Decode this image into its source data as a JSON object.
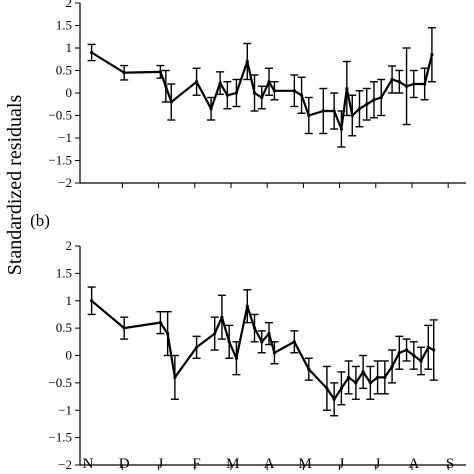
{
  "figure": {
    "ylabel": "Standardized residuals",
    "month_labels": [
      "N",
      "D",
      "J",
      "F",
      "M",
      "A",
      "M",
      "J",
      "J",
      "A",
      "S"
    ]
  },
  "chart_data": [
    {
      "type": "line",
      "panel_label": "",
      "ylabel": "Standardized residuals",
      "ylim": [
        -2,
        2
      ],
      "yticks": [
        -2,
        -1.5,
        -1,
        -0.5,
        0,
        0.5,
        1,
        1.5,
        2
      ],
      "ytick_labels": [
        "−2",
        "−1.5",
        "−1",
        "−0.5",
        "0",
        "0.5",
        "1",
        "1.5",
        "2"
      ],
      "x_categories": [
        "N",
        "D",
        "J",
        "F",
        "M",
        "A",
        "M",
        "J",
        "J",
        "A",
        "S"
      ],
      "xlim": [
        0,
        11.1
      ],
      "error_bars": true,
      "points": [
        {
          "x": 0.1,
          "y": 0.9,
          "err": 0.18
        },
        {
          "x": 1.0,
          "y": 0.45,
          "err": 0.16
        },
        {
          "x": 2.0,
          "y": 0.47,
          "err": 0.14
        },
        {
          "x": 2.15,
          "y": 0.15,
          "err": 0.35
        },
        {
          "x": 2.3,
          "y": -0.2,
          "err": 0.4
        },
        {
          "x": 3.0,
          "y": 0.25,
          "err": 0.3
        },
        {
          "x": 3.4,
          "y": -0.35,
          "err": 0.25
        },
        {
          "x": 3.65,
          "y": 0.22,
          "err": 0.25
        },
        {
          "x": 3.85,
          "y": -0.05,
          "err": 0.3
        },
        {
          "x": 4.1,
          "y": 0.0,
          "err": 0.3
        },
        {
          "x": 4.4,
          "y": 0.7,
          "err": 0.4
        },
        {
          "x": 4.6,
          "y": 0.0,
          "err": 0.4
        },
        {
          "x": 4.8,
          "y": -0.1,
          "err": 0.25
        },
        {
          "x": 5.0,
          "y": 0.25,
          "err": 0.3
        },
        {
          "x": 5.15,
          "y": 0.05,
          "err": 0.2
        },
        {
          "x": 5.7,
          "y": 0.05,
          "err": 0.35
        },
        {
          "x": 5.9,
          "y": -0.05,
          "err": 0.4
        },
        {
          "x": 6.1,
          "y": -0.5,
          "err": 0.4
        },
        {
          "x": 6.5,
          "y": -0.4,
          "err": 0.5
        },
        {
          "x": 6.8,
          "y": -0.4,
          "err": 0.4
        },
        {
          "x": 7.0,
          "y": -0.8,
          "err": 0.4
        },
        {
          "x": 7.15,
          "y": 0.1,
          "err": 0.6
        },
        {
          "x": 7.3,
          "y": -0.5,
          "err": 0.45
        },
        {
          "x": 7.5,
          "y": -0.35,
          "err": 0.4
        },
        {
          "x": 7.7,
          "y": -0.25,
          "err": 0.35
        },
        {
          "x": 7.9,
          "y": -0.15,
          "err": 0.4
        },
        {
          "x": 8.1,
          "y": -0.1,
          "err": 0.4
        },
        {
          "x": 8.4,
          "y": 0.3,
          "err": 0.3
        },
        {
          "x": 8.6,
          "y": 0.25,
          "err": 0.25
        },
        {
          "x": 8.8,
          "y": 0.15,
          "err": 0.85
        },
        {
          "x": 9.0,
          "y": 0.2,
          "err": 0.3
        },
        {
          "x": 9.3,
          "y": 0.2,
          "err": 0.35
        },
        {
          "x": 9.5,
          "y": 0.85,
          "err": 0.6
        }
      ]
    },
    {
      "type": "line",
      "panel_label": "(b)",
      "ylabel": "Standardized residuals",
      "ylim": [
        -2,
        2
      ],
      "yticks": [
        -2,
        -1.5,
        -1,
        -0.5,
        0,
        0.5,
        1,
        1.5,
        2
      ],
      "ytick_labels": [
        "−2",
        "−1.5",
        "−1",
        "−0.5",
        "0",
        "0.5",
        "1",
        "1.5",
        "2"
      ],
      "x_categories": [
        "N",
        "D",
        "J",
        "F",
        "M",
        "A",
        "M",
        "J",
        "J",
        "A",
        "S"
      ],
      "xlim": [
        0,
        11.1
      ],
      "error_bars": true,
      "points": [
        {
          "x": 0.1,
          "y": 1.0,
          "err": 0.25
        },
        {
          "x": 1.0,
          "y": 0.5,
          "err": 0.2
        },
        {
          "x": 2.0,
          "y": 0.6,
          "err": 0.2
        },
        {
          "x": 2.2,
          "y": 0.4,
          "err": 0.4
        },
        {
          "x": 2.4,
          "y": -0.4,
          "err": 0.4
        },
        {
          "x": 3.0,
          "y": 0.15,
          "err": 0.2
        },
        {
          "x": 3.5,
          "y": 0.4,
          "err": 0.3
        },
        {
          "x": 3.7,
          "y": 0.7,
          "err": 0.4
        },
        {
          "x": 3.9,
          "y": 0.25,
          "err": 0.3
        },
        {
          "x": 4.1,
          "y": -0.05,
          "err": 0.3
        },
        {
          "x": 4.4,
          "y": 0.9,
          "err": 0.3
        },
        {
          "x": 4.6,
          "y": 0.5,
          "err": 0.25
        },
        {
          "x": 4.8,
          "y": 0.25,
          "err": 0.2
        },
        {
          "x": 5.0,
          "y": 0.4,
          "err": 0.2
        },
        {
          "x": 5.15,
          "y": 0.05,
          "err": 0.2
        },
        {
          "x": 5.7,
          "y": 0.25,
          "err": 0.2
        },
        {
          "x": 6.1,
          "y": -0.25,
          "err": 0.2
        },
        {
          "x": 6.6,
          "y": -0.6,
          "err": 0.4
        },
        {
          "x": 6.8,
          "y": -0.8,
          "err": 0.3
        },
        {
          "x": 7.0,
          "y": -0.6,
          "err": 0.3
        },
        {
          "x": 7.2,
          "y": -0.4,
          "err": 0.3
        },
        {
          "x": 7.4,
          "y": -0.5,
          "err": 0.3
        },
        {
          "x": 7.6,
          "y": -0.3,
          "err": 0.3
        },
        {
          "x": 7.8,
          "y": -0.5,
          "err": 0.3
        },
        {
          "x": 8.0,
          "y": -0.4,
          "err": 0.3
        },
        {
          "x": 8.2,
          "y": -0.4,
          "err": 0.3
        },
        {
          "x": 8.4,
          "y": -0.2,
          "err": 0.3
        },
        {
          "x": 8.6,
          "y": 0.05,
          "err": 0.3
        },
        {
          "x": 8.8,
          "y": 0.1,
          "err": 0.2
        },
        {
          "x": 9.0,
          "y": 0.0,
          "err": 0.25
        },
        {
          "x": 9.2,
          "y": -0.1,
          "err": 0.25
        },
        {
          "x": 9.4,
          "y": 0.15,
          "err": 0.4
        },
        {
          "x": 9.55,
          "y": 0.1,
          "err": 0.55
        }
      ]
    }
  ]
}
